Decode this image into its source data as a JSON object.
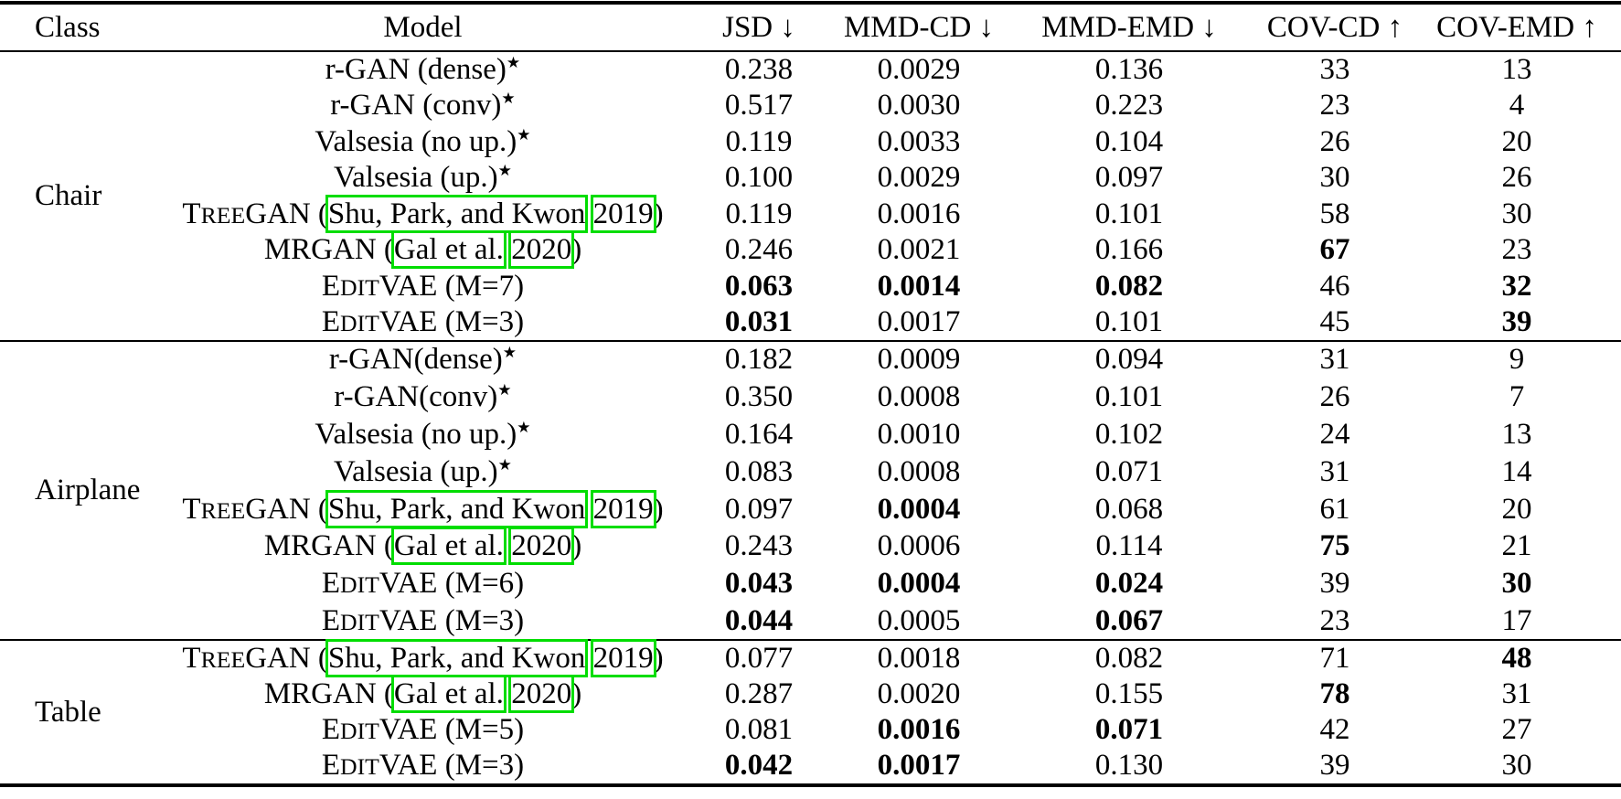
{
  "colors": {
    "citation_box_green": "#00dd00"
  },
  "table": {
    "headers": [
      "Class",
      "Model",
      "JSD ↓",
      "MMD-CD ↓",
      "MMD-EMD ↓",
      "COV-CD ↑",
      "COV-EMD ↑"
    ],
    "sections": [
      {
        "class": "Chair",
        "rows": [
          {
            "model": [
              {
                "t": "r-GAN (dense)"
              },
              {
                "t": "★",
                "sup": true
              }
            ],
            "values": [
              "0.238",
              "0.0029",
              "0.136",
              "33",
              "13"
            ],
            "bold": [
              false,
              false,
              false,
              false,
              false
            ]
          },
          {
            "model": [
              {
                "t": "r-GAN (conv)"
              },
              {
                "t": "★",
                "sup": true
              }
            ],
            "values": [
              "0.517",
              "0.0030",
              "0.223",
              "23",
              "4"
            ],
            "bold": [
              false,
              false,
              false,
              false,
              false
            ]
          },
          {
            "model": [
              {
                "t": "Valsesia (no up.)"
              },
              {
                "t": "★",
                "sup": true
              }
            ],
            "values": [
              "0.119",
              "0.0033",
              "0.104",
              "26",
              "20"
            ],
            "bold": [
              false,
              false,
              false,
              false,
              false
            ]
          },
          {
            "model": [
              {
                "t": "Valsesia (up.)"
              },
              {
                "t": "★",
                "sup": true
              }
            ],
            "values": [
              "0.100",
              "0.0029",
              "0.097",
              "30",
              "26"
            ],
            "bold": [
              false,
              false,
              false,
              false,
              false
            ]
          },
          {
            "model": [
              {
                "t": "T"
              },
              {
                "t": "REE",
                "sc": true
              },
              {
                "t": "GAN ("
              },
              {
                "t": "Shu, Park, and Kwon",
                "cite": true
              },
              {
                "t": " "
              },
              {
                "t": "2019",
                "cite": true
              },
              {
                "t": ")"
              }
            ],
            "values": [
              "0.119",
              "0.0016",
              "0.101",
              "58",
              "30"
            ],
            "bold": [
              false,
              false,
              false,
              false,
              false
            ]
          },
          {
            "model": [
              {
                "t": "MRGAN ("
              },
              {
                "t": "Gal et al.",
                "cite": true
              },
              {
                "t": " "
              },
              {
                "t": "2020",
                "cite": true
              },
              {
                "t": ")"
              }
            ],
            "values": [
              "0.246",
              "0.0021",
              "0.166",
              "67",
              "23"
            ],
            "bold": [
              false,
              false,
              false,
              true,
              false
            ]
          },
          {
            "model": [
              {
                "t": "E"
              },
              {
                "t": "DIT",
                "sc": true
              },
              {
                "t": "VAE (M=7)"
              }
            ],
            "values": [
              "0.063",
              "0.0014",
              "0.082",
              "46",
              "32"
            ],
            "bold": [
              true,
              true,
              true,
              false,
              true
            ]
          },
          {
            "model": [
              {
                "t": "E"
              },
              {
                "t": "DIT",
                "sc": true
              },
              {
                "t": "VAE (M=3)"
              }
            ],
            "values": [
              "0.031",
              "0.0017",
              "0.101",
              "45",
              "39"
            ],
            "bold": [
              true,
              false,
              false,
              false,
              true
            ]
          }
        ]
      },
      {
        "class": "Airplane",
        "rows": [
          {
            "model": [
              {
                "t": "r-GAN(dense)"
              },
              {
                "t": "★",
                "sup": true
              }
            ],
            "values": [
              "0.182",
              "0.0009",
              "0.094",
              "31",
              "9"
            ],
            "bold": [
              false,
              false,
              false,
              false,
              false
            ]
          },
          {
            "model": [
              {
                "t": "r-GAN(conv)"
              },
              {
                "t": "★",
                "sup": true
              }
            ],
            "values": [
              "0.350",
              "0.0008",
              "0.101",
              "26",
              "7"
            ],
            "bold": [
              false,
              false,
              false,
              false,
              false
            ]
          },
          {
            "model": [
              {
                "t": "Valsesia (no up.)"
              },
              {
                "t": "★",
                "sup": true
              }
            ],
            "values": [
              "0.164",
              "0.0010",
              "0.102",
              "24",
              "13"
            ],
            "bold": [
              false,
              false,
              false,
              false,
              false
            ]
          },
          {
            "model": [
              {
                "t": "Valsesia (up.)"
              },
              {
                "t": "★",
                "sup": true
              }
            ],
            "values": [
              "0.083",
              "0.0008",
              "0.071",
              "31",
              "14"
            ],
            "bold": [
              false,
              false,
              false,
              false,
              false
            ]
          },
          {
            "model": [
              {
                "t": "T"
              },
              {
                "t": "REE",
                "sc": true
              },
              {
                "t": "GAN ("
              },
              {
                "t": "Shu, Park, and Kwon",
                "cite": true
              },
              {
                "t": " "
              },
              {
                "t": "2019",
                "cite": true
              },
              {
                "t": ")"
              }
            ],
            "values": [
              "0.097",
              "0.0004",
              "0.068",
              "61",
              "20"
            ],
            "bold": [
              false,
              true,
              false,
              false,
              false
            ]
          },
          {
            "model": [
              {
                "t": "MRGAN ("
              },
              {
                "t": "Gal et al.",
                "cite": true
              },
              {
                "t": " "
              },
              {
                "t": "2020",
                "cite": true
              },
              {
                "t": ")"
              }
            ],
            "values": [
              "0.243",
              "0.0006",
              "0.114",
              "75",
              "21"
            ],
            "bold": [
              false,
              false,
              false,
              true,
              false
            ]
          },
          {
            "model": [
              {
                "t": "E"
              },
              {
                "t": "DIT",
                "sc": true
              },
              {
                "t": "VAE (M=6)"
              }
            ],
            "values": [
              "0.043",
              "0.0004",
              "0.024",
              "39",
              "30"
            ],
            "bold": [
              true,
              true,
              true,
              false,
              true
            ]
          },
          {
            "model": [
              {
                "t": "E"
              },
              {
                "t": "DIT",
                "sc": true
              },
              {
                "t": "VAE (M=3)"
              }
            ],
            "values": [
              "0.044",
              "0.0005",
              "0.067",
              "23",
              "17"
            ],
            "bold": [
              true,
              false,
              true,
              false,
              false
            ]
          }
        ]
      },
      {
        "class": "Table",
        "rows": [
          {
            "model": [
              {
                "t": "T"
              },
              {
                "t": "REE",
                "sc": true
              },
              {
                "t": "GAN ("
              },
              {
                "t": "Shu, Park, and Kwon",
                "cite": true
              },
              {
                "t": " "
              },
              {
                "t": "2019",
                "cite": true
              },
              {
                "t": ")"
              }
            ],
            "values": [
              "0.077",
              "0.0018",
              "0.082",
              "71",
              "48"
            ],
            "bold": [
              false,
              false,
              false,
              false,
              true
            ]
          },
          {
            "model": [
              {
                "t": "MRGAN ("
              },
              {
                "t": "Gal et al.",
                "cite": true
              },
              {
                "t": " "
              },
              {
                "t": "2020",
                "cite": true
              },
              {
                "t": ")"
              }
            ],
            "values": [
              "0.287",
              "0.0020",
              "0.155",
              "78",
              "31"
            ],
            "bold": [
              false,
              false,
              false,
              true,
              false
            ]
          },
          {
            "model": [
              {
                "t": "E"
              },
              {
                "t": "DIT",
                "sc": true
              },
              {
                "t": "VAE (M=5)"
              }
            ],
            "values": [
              "0.081",
              "0.0016",
              "0.071",
              "42",
              "27"
            ],
            "bold": [
              false,
              true,
              true,
              false,
              false
            ]
          },
          {
            "model": [
              {
                "t": "E"
              },
              {
                "t": "DIT",
                "sc": true
              },
              {
                "t": "VAE (M=3)"
              }
            ],
            "values": [
              "0.042",
              "0.0017",
              "0.130",
              "39",
              "30"
            ],
            "bold": [
              true,
              true,
              false,
              false,
              false
            ]
          }
        ]
      }
    ]
  }
}
